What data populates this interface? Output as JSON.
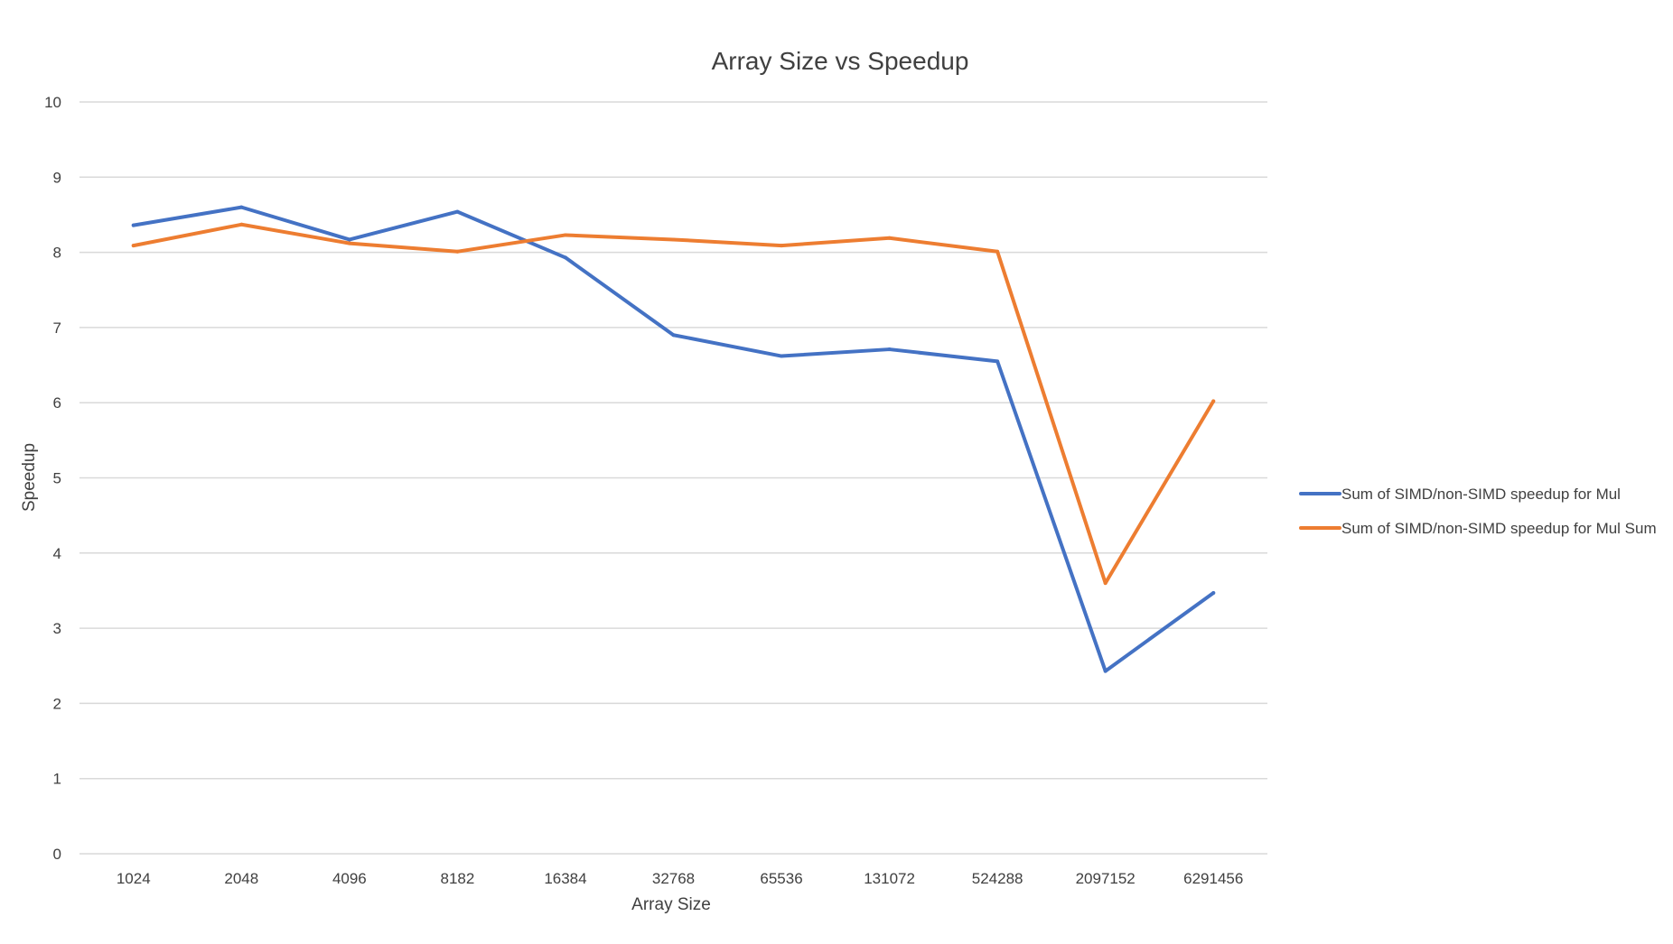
{
  "chart_data": {
    "type": "line",
    "title": "Array Size vs Speedup",
    "xlabel": "Array Size",
    "ylabel": "Speedup",
    "categories": [
      "1024",
      "2048",
      "4096",
      "8182",
      "16384",
      "32768",
      "65536",
      "131072",
      "524288",
      "2097152",
      "6291456"
    ],
    "ylim": [
      0,
      10
    ],
    "yticks": [
      "0",
      "1",
      "2",
      "3",
      "4",
      "5",
      "6",
      "7",
      "8",
      "9",
      "10"
    ],
    "grid": true,
    "legend_position": "right",
    "series": [
      {
        "name": "Sum of  SIMD/non-SIMD speedup for Mul",
        "color": "#4472C4",
        "values": [
          8.36,
          8.6,
          8.17,
          8.54,
          7.93,
          6.9,
          6.62,
          6.71,
          6.55,
          2.43,
          3.47
        ]
      },
      {
        "name": "Sum of  SIMD/non-SIMD speedup for Mul Sum",
        "color": "#ED7D31",
        "values": [
          8.09,
          8.37,
          8.12,
          8.01,
          8.23,
          8.17,
          8.09,
          8.19,
          8.01,
          3.6,
          6.02
        ]
      }
    ]
  }
}
